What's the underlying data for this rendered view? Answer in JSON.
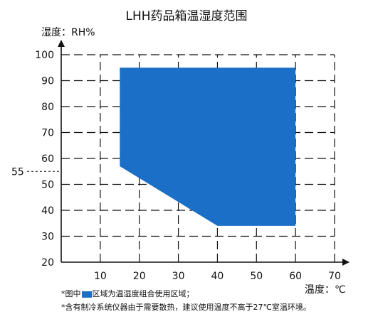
{
  "chart_data": {
    "type": "area",
    "title": "LHH药品箱温湿度范围",
    "xlabel": "温度：℃",
    "ylabel": "湿度：RH%",
    "xlim": [
      0,
      70
    ],
    "ylim": [
      20,
      100
    ],
    "x_ticks": [
      10,
      20,
      30,
      40,
      50,
      60,
      70
    ],
    "y_ticks": [
      20,
      30,
      40,
      50,
      60,
      70,
      80,
      90,
      100
    ],
    "grid": true,
    "grid_style": "dashed",
    "fill_color": "#1b6fc6",
    "region": [
      {
        "x": 15,
        "y": 95
      },
      {
        "x": 60,
        "y": 95
      },
      {
        "x": 60,
        "y": 34
      },
      {
        "x": 40,
        "y": 34
      },
      {
        "x": 15,
        "y": 57
      }
    ],
    "annotation": {
      "value": 55,
      "label": "55"
    }
  },
  "notes": {
    "line1_prefix": "*图中",
    "line1_suffix": "区域为温湿度组合使用区域；",
    "line2": "*含有制冷系统仪器由于需要散热，建议使用温度不高于27℃室温环境。"
  }
}
